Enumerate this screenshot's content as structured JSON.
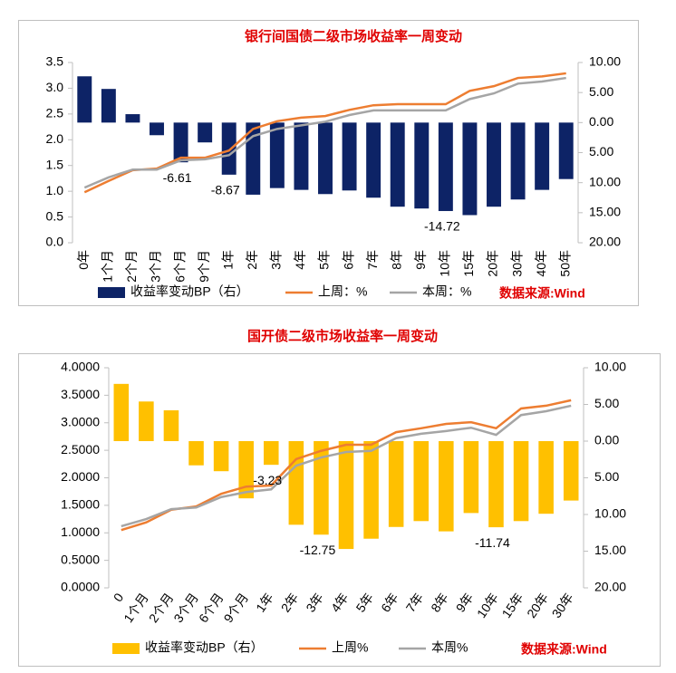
{
  "chart_data": [
    {
      "type": "bar",
      "title": "银行间国债二级市场收益率一周变动",
      "source": "数据来源:Wind",
      "categories": [
        "0年",
        "1个月",
        "2个月",
        "3个月",
        "6个月",
        "9个月",
        "1年",
        "2年",
        "3年",
        "4年",
        "5年",
        "6年",
        "7年",
        "8年",
        "9年",
        "10年",
        "15年",
        "20年",
        "30年",
        "40年",
        "50年"
      ],
      "series": [
        {
          "name": "收益率变动BP（右）",
          "type": "bar",
          "axis": "y2",
          "color": "#0d2366",
          "values": [
            7.7,
            5.6,
            1.4,
            -2.1,
            -6.61,
            -3.3,
            -8.67,
            -12.0,
            -10.9,
            -11.2,
            -11.9,
            -11.3,
            -12.5,
            -14.0,
            -14.3,
            -14.72,
            -15.4,
            -14.0,
            -12.8,
            -11.2,
            -9.4
          ],
          "value_labels": [
            null,
            null,
            null,
            null,
            "-6.61",
            null,
            "-8.67",
            null,
            null,
            null,
            null,
            null,
            null,
            null,
            null,
            "-14.72",
            null,
            null,
            null,
            null,
            null
          ]
        },
        {
          "name": "上周：%",
          "type": "line",
          "color": "#ed7d31",
          "values": [
            0.98,
            1.2,
            1.41,
            1.44,
            1.65,
            1.65,
            1.79,
            2.21,
            2.36,
            2.43,
            2.46,
            2.58,
            2.67,
            2.69,
            2.69,
            2.69,
            2.95,
            3.04,
            3.2,
            3.23,
            3.29
          ]
        },
        {
          "name": "本周：%",
          "type": "line",
          "color": "#a5a5a5",
          "values": [
            1.07,
            1.27,
            1.42,
            1.42,
            1.6,
            1.62,
            1.7,
            2.07,
            2.21,
            2.28,
            2.35,
            2.48,
            2.57,
            2.57,
            2.57,
            2.57,
            2.79,
            2.9,
            3.09,
            3.13,
            3.2
          ]
        }
      ],
      "ylim": [
        0,
        3.5
      ],
      "yticks": [
        {
          "value": 0,
          "label": "0.0"
        },
        0.5,
        {
          "value": 1,
          "label": "1.0"
        },
        1.5,
        {
          "value": 2,
          "label": "2.0"
        },
        2.5,
        {
          "value": 3,
          "label": "3.0"
        },
        3.5
      ],
      "y2lim": [
        -20,
        10
      ],
      "y2ticks": [
        {
          "value": -20,
          "label": "20.00"
        },
        {
          "value": -15,
          "label": "15.00"
        },
        {
          "value": -10,
          "label": "10.00"
        },
        {
          "value": -5,
          "label": "5.00"
        },
        {
          "value": 0,
          "label": "0.00"
        },
        {
          "value": 5,
          "label": "5.00"
        },
        {
          "value": 10,
          "label": "10.00"
        }
      ],
      "y2_negative_label_color": "#e00000",
      "grid": false,
      "legend": "bottom"
    },
    {
      "type": "bar",
      "title": "国开债二级市场收益率一周变动",
      "source": "数据来源:Wind",
      "categories": [
        "0",
        "1个月",
        "2个月",
        "3个月",
        "6个月",
        "9个月",
        "1年",
        "2年",
        "3年",
        "4年",
        "5年",
        "6年",
        "7年",
        "8年",
        "9年",
        "10年",
        "15年",
        "20年",
        "30年"
      ],
      "series": [
        {
          "name": "收益率变动BP（右）",
          "type": "bar",
          "axis": "y2",
          "color": "#ffc000",
          "values": [
            7.8,
            5.4,
            4.2,
            -3.3,
            -4.1,
            -7.8,
            -3.23,
            -11.4,
            -12.75,
            -14.7,
            -13.3,
            -11.7,
            -10.9,
            -12.3,
            -9.8,
            -11.74,
            -10.9,
            -9.9,
            -8.1
          ],
          "value_labels": [
            null,
            null,
            null,
            null,
            null,
            null,
            "-3.23",
            null,
            "-12.75",
            null,
            null,
            null,
            null,
            null,
            null,
            "-11.74",
            null,
            null,
            null
          ]
        },
        {
          "name": "上周%",
          "type": "line",
          "color": "#ed7d31",
          "values": [
            1.05,
            1.19,
            1.42,
            1.48,
            1.71,
            1.84,
            1.86,
            2.34,
            2.49,
            2.6,
            2.6,
            2.83,
            2.9,
            2.98,
            3.01,
            2.9,
            3.26,
            3.31,
            3.41
          ]
        },
        {
          "name": "本周%",
          "type": "line",
          "color": "#a5a5a5",
          "values": [
            1.12,
            1.25,
            1.43,
            1.46,
            1.65,
            1.74,
            1.79,
            2.22,
            2.37,
            2.47,
            2.49,
            2.72,
            2.8,
            2.85,
            2.91,
            2.78,
            3.14,
            3.21,
            3.31
          ]
        }
      ],
      "ylim": [
        0,
        4
      ],
      "yticks": [
        {
          "value": 0,
          "label": "0.0000"
        },
        {
          "value": 0.5,
          "label": "0.5000"
        },
        {
          "value": 1,
          "label": "1.0000"
        },
        {
          "value": 1.5,
          "label": "1.5000"
        },
        {
          "value": 2,
          "label": "2.0000"
        },
        {
          "value": 2.5,
          "label": "2.5000"
        },
        {
          "value": 3,
          "label": "3.0000"
        },
        {
          "value": 3.5,
          "label": "3.5000"
        },
        {
          "value": 4,
          "label": "4.0000"
        }
      ],
      "y2lim": [
        -20,
        10
      ],
      "y2ticks": [
        {
          "value": -20,
          "label": "20.00"
        },
        {
          "value": -15,
          "label": "15.00"
        },
        {
          "value": -10,
          "label": "10.00"
        },
        {
          "value": -5,
          "label": "5.00"
        },
        {
          "value": 0,
          "label": "0.00"
        },
        {
          "value": 5,
          "label": "5.00"
        },
        {
          "value": 10,
          "label": "10.00"
        }
      ],
      "y2_negative_label_color": "#e00000",
      "grid": false,
      "legend": "bottom"
    }
  ]
}
